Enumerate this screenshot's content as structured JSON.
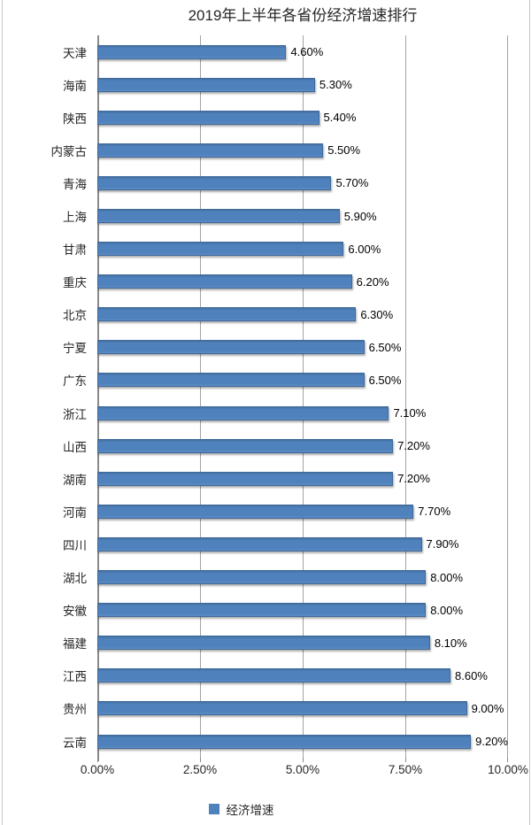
{
  "chart_data": {
    "type": "bar",
    "orientation": "horizontal",
    "title": "2019年上半年各省份经济增速排行",
    "categories": [
      "天津",
      "海南",
      "陕西",
      "内蒙古",
      "青海",
      "上海",
      "甘肃",
      "重庆",
      "北京",
      "宁夏",
      "广东",
      "浙江",
      "山西",
      "湖南",
      "河南",
      "四川",
      "湖北",
      "安徽",
      "福建",
      "江西",
      "贵州",
      "云南"
    ],
    "values": [
      4.6,
      5.3,
      5.4,
      5.5,
      5.7,
      5.9,
      6.0,
      6.2,
      6.3,
      6.5,
      6.5,
      7.1,
      7.2,
      7.2,
      7.7,
      7.9,
      8.0,
      8.0,
      8.1,
      8.6,
      9.0,
      9.2
    ],
    "labels": [
      "4.60%",
      "5.30%",
      "5.40%",
      "5.50%",
      "5.70%",
      "5.90%",
      "6.00%",
      "6.20%",
      "6.30%",
      "6.50%",
      "6.50%",
      "7.10%",
      "7.20%",
      "7.20%",
      "7.70%",
      "7.90%",
      "8.00%",
      "8.00%",
      "8.10%",
      "8.60%",
      "9.00%",
      "9.20%"
    ],
    "x_ticks": [
      "0.00%",
      "2.50%",
      "5.00%",
      "7.50%",
      "10.00%"
    ],
    "xlim": [
      0,
      10
    ],
    "grid": "vertical",
    "legend": [
      "经济增速"
    ],
    "legend_position": "bottom",
    "colors": {
      "bar": "#4f81bd",
      "bar_border": "#3f699b",
      "gridline": "#a3a3a3",
      "axis": "#898989",
      "text": "#262626"
    }
  }
}
